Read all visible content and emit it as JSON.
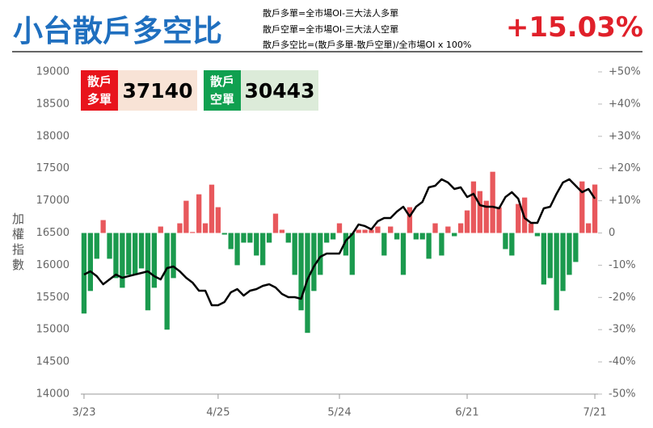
{
  "header": {
    "title": "小台散戶多空比",
    "definitions": [
      "散戶多單=全市場OI-三大法人多單",
      "散戶空單=全市場OI-三大法人空單",
      "散戶多空比=(散戶多單-散戶空單)/全市場OI x 100%"
    ],
    "current_ratio": "+15.03%"
  },
  "boxes": [
    {
      "label": "散戶多單",
      "value": 37140
    },
    {
      "label": "散戶空單",
      "value": 30443
    }
  ],
  "chart_data": {
    "type": "bar-line",
    "ylabel": "加權指數",
    "categories": [
      "3/23",
      null,
      null,
      null,
      null,
      null,
      null,
      null,
      null,
      null,
      null,
      null,
      null,
      null,
      null,
      null,
      null,
      null,
      null,
      null,
      null,
      "4/25",
      null,
      null,
      null,
      null,
      null,
      null,
      null,
      null,
      null,
      null,
      null,
      null,
      null,
      null,
      null,
      null,
      null,
      null,
      "5/24",
      null,
      null,
      null,
      null,
      null,
      null,
      null,
      null,
      null,
      null,
      null,
      null,
      null,
      null,
      null,
      null,
      null,
      null,
      null,
      "6/21",
      null,
      null,
      null,
      null,
      null,
      null,
      null,
      null,
      null,
      null,
      null,
      null,
      null,
      null,
      null,
      null,
      null,
      null,
      null,
      "7/21"
    ],
    "series": [
      {
        "type": "bar",
        "axis": "y2",
        "positive_color": "#e8585c",
        "negative_color": "#1b9a4e",
        "values": [
          -25,
          -18,
          -8,
          4,
          -8,
          -14,
          -17,
          -13,
          -13,
          -11,
          -24,
          -17,
          2,
          -30,
          -14,
          3,
          10,
          0.3,
          12,
          3,
          15,
          8,
          -0.5,
          -5,
          -10,
          -3,
          -3,
          -7,
          -10,
          -3,
          6,
          1,
          -3,
          -13,
          -24,
          -31,
          -18,
          -13,
          -3,
          -2,
          3,
          -7,
          -13,
          1,
          1,
          1,
          2,
          -7,
          2,
          -2,
          -13,
          8,
          -2,
          -2,
          -8,
          3,
          -7,
          2,
          -1,
          3,
          7,
          16,
          13,
          10,
          19,
          8,
          -5,
          -7,
          9,
          11,
          3,
          -1,
          -16,
          -14,
          -24,
          -18,
          -13,
          -9,
          16,
          3,
          15.03
        ]
      },
      {
        "type": "line",
        "axis": "y",
        "color": "#000000",
        "values": [
          15855,
          15905,
          15830,
          15704,
          15780,
          15855,
          15805,
          15830,
          15855,
          15880,
          15905,
          15830,
          15780,
          15955,
          15980,
          15905,
          15805,
          15730,
          15604,
          15604,
          15379,
          15379,
          15429,
          15579,
          15629,
          15529,
          15604,
          15629,
          15679,
          15704,
          15654,
          15554,
          15504,
          15504,
          15479,
          15780,
          15980,
          16130,
          16181,
          16181,
          16181,
          16381,
          16481,
          16632,
          16607,
          16556,
          16682,
          16732,
          16732,
          16832,
          16907,
          16757,
          16907,
          16983,
          17208,
          17233,
          17333,
          17283,
          17183,
          17208,
          17058,
          17108,
          16932,
          16907,
          16907,
          16882,
          17058,
          17133,
          17033,
          16732,
          16657,
          16657,
          16882,
          16907,
          17108,
          17283,
          17333,
          17233,
          17133,
          17183,
          17033
        ]
      }
    ],
    "ylim": [
      14000,
      19000
    ],
    "yticks": [
      14000,
      14500,
      15000,
      15500,
      16000,
      16500,
      17000,
      17500,
      18000,
      18500,
      19000
    ],
    "y2lim": [
      -50,
      50
    ],
    "y2ticks": [
      {
        "value": -50,
        "label": "-50%"
      },
      {
        "value": -40,
        "label": "-40%"
      },
      {
        "value": -30,
        "label": "-30%"
      },
      {
        "value": -20,
        "label": "-20%"
      },
      {
        "value": -10,
        "label": "-10%"
      },
      0,
      {
        "value": 10,
        "label": "+10%"
      },
      {
        "value": 20,
        "label": "+20%"
      },
      {
        "value": 30,
        "label": "+30%"
      },
      {
        "value": 40,
        "label": "+40%"
      },
      {
        "value": 50,
        "label": "+50%"
      }
    ],
    "grid": false
  }
}
